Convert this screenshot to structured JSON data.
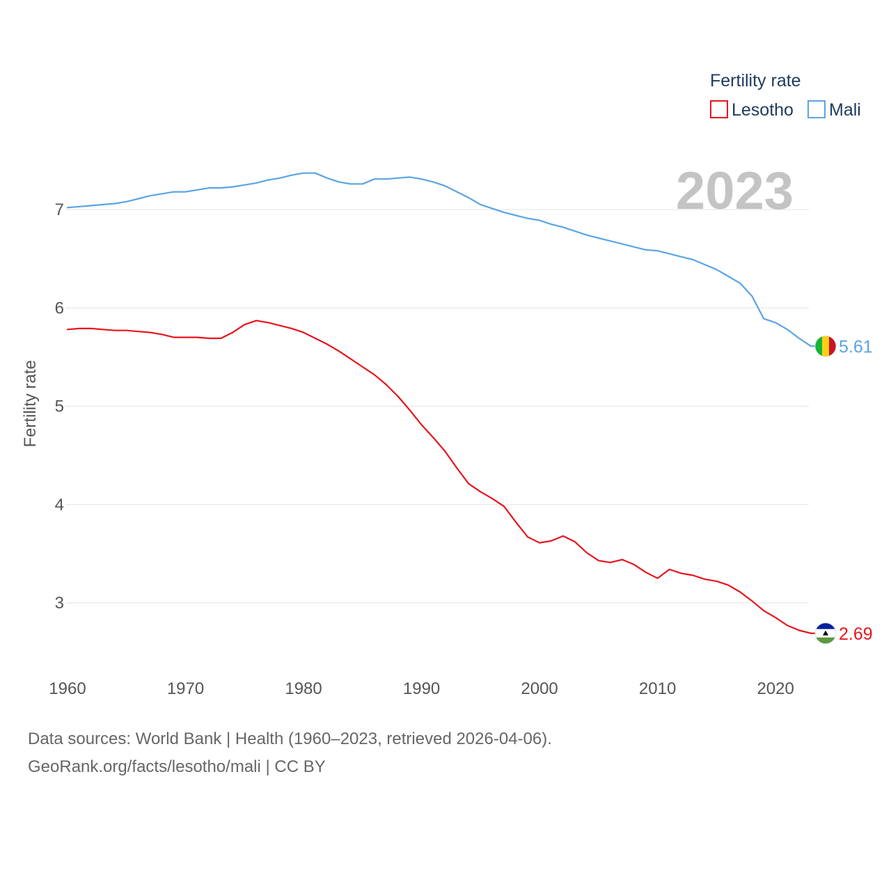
{
  "chart_data": {
    "type": "line",
    "title": "Fertility rate",
    "year_label": "2023",
    "xlabel": "",
    "ylabel": "Fertility rate",
    "xlim": [
      1960,
      2023
    ],
    "ylim": [
      2.45,
      7.75
    ],
    "x_ticks": [
      1960,
      1970,
      1980,
      1990,
      2000,
      2010,
      2020
    ],
    "y_ticks": [
      3,
      4,
      5,
      6,
      7
    ],
    "legend_title": "Fertility rate",
    "legend_position": "top-right",
    "x": [
      1960,
      1961,
      1962,
      1963,
      1964,
      1965,
      1966,
      1967,
      1968,
      1969,
      1970,
      1971,
      1972,
      1973,
      1974,
      1975,
      1976,
      1977,
      1978,
      1979,
      1980,
      1981,
      1982,
      1983,
      1984,
      1985,
      1986,
      1987,
      1988,
      1989,
      1990,
      1991,
      1992,
      1993,
      1994,
      1995,
      1996,
      1997,
      1998,
      1999,
      2000,
      2001,
      2002,
      2003,
      2004,
      2005,
      2006,
      2007,
      2008,
      2009,
      2010,
      2011,
      2012,
      2013,
      2014,
      2015,
      2016,
      2017,
      2018,
      2019,
      2020,
      2021,
      2022,
      2023
    ],
    "series": [
      {
        "name": "Lesotho",
        "color": "#e8141b",
        "end_label": "2.69",
        "flag": "lesotho-flag",
        "values": [
          5.78,
          5.79,
          5.79,
          5.78,
          5.77,
          5.77,
          5.76,
          5.75,
          5.73,
          5.7,
          5.7,
          5.7,
          5.69,
          5.69,
          5.75,
          5.83,
          5.87,
          5.85,
          5.82,
          5.79,
          5.75,
          5.69,
          5.63,
          5.56,
          5.48,
          5.4,
          5.32,
          5.22,
          5.1,
          4.96,
          4.81,
          4.68,
          4.54,
          4.37,
          4.21,
          4.13,
          4.06,
          3.98,
          3.82,
          3.67,
          3.61,
          3.63,
          3.68,
          3.62,
          3.51,
          3.43,
          3.41,
          3.44,
          3.39,
          3.31,
          3.25,
          3.34,
          3.3,
          3.28,
          3.24,
          3.22,
          3.18,
          3.11,
          3.02,
          2.92,
          2.85,
          2.77,
          2.72,
          2.69
        ]
      },
      {
        "name": "Mali",
        "color": "#5ba4e5",
        "end_label": "5.61",
        "flag": "mali-flag",
        "values": [
          7.02,
          7.03,
          7.04,
          7.05,
          7.06,
          7.08,
          7.11,
          7.14,
          7.16,
          7.18,
          7.18,
          7.2,
          7.22,
          7.22,
          7.23,
          7.25,
          7.27,
          7.3,
          7.32,
          7.35,
          7.37,
          7.37,
          7.32,
          7.28,
          7.26,
          7.26,
          7.31,
          7.31,
          7.32,
          7.33,
          7.31,
          7.28,
          7.24,
          7.18,
          7.12,
          7.05,
          7.01,
          6.97,
          6.94,
          6.91,
          6.89,
          6.85,
          6.82,
          6.78,
          6.74,
          6.71,
          6.68,
          6.65,
          6.62,
          6.59,
          6.58,
          6.55,
          6.52,
          6.49,
          6.44,
          6.39,
          6.32,
          6.25,
          6.12,
          5.89,
          5.85,
          5.78,
          5.69,
          5.61
        ]
      }
    ]
  },
  "source": {
    "line1": "Data sources: World Bank | Health (1960–2023, retrieved 2026-04-06).",
    "line2": "GeoRank.org/facts/lesotho/mali | CC BY"
  }
}
